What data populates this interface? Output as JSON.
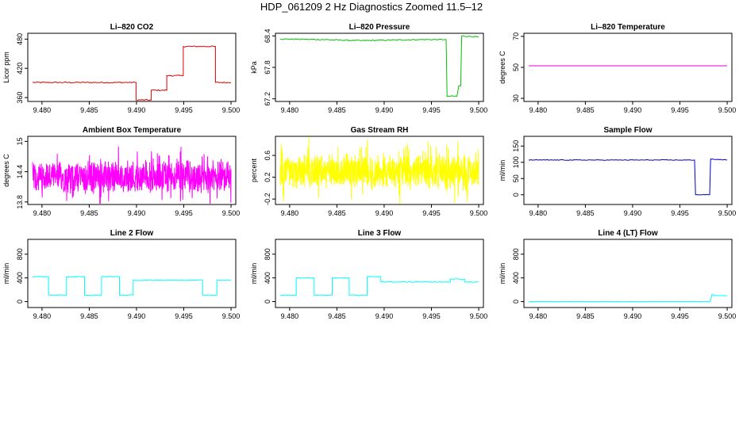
{
  "figure": {
    "title": "HDP_061209  2 Hz Diagnostics Zoomed 11.5–12"
  },
  "chart_data": [
    {
      "type": "line",
      "title": "Li–820 CO2",
      "xlabel": "",
      "ylabel": "Licor ppm",
      "color": "#e00000",
      "xlim": [
        9.4785,
        9.5005
      ],
      "ylim": [
        352,
        492
      ],
      "xticks": [
        "9.480",
        "9.485",
        "9.490",
        "9.495",
        "9.500"
      ],
      "yticks": [
        360,
        420,
        480
      ],
      "series": [
        {
          "noise": 1.2,
          "x": [
            9.479,
            9.48995,
            9.48995,
            9.49155,
            9.49155,
            9.4932,
            9.4932,
            9.49495,
            9.49495,
            9.49835,
            9.49835,
            9.5
          ],
          "y": [
            391,
            391,
            355,
            355,
            375,
            375,
            405,
            405,
            465,
            465,
            391,
            391
          ]
        }
      ]
    },
    {
      "type": "line",
      "title": "Li–820 Pressure",
      "xlabel": "",
      "ylabel": "kPa",
      "color": "#00c000",
      "xlim": [
        9.4785,
        9.5005
      ],
      "ylim": [
        67.15,
        68.45
      ],
      "xticks": [
        "9.480",
        "9.485",
        "9.490",
        "9.495",
        "9.500"
      ],
      "yticks": [
        67.2,
        67.8,
        68.4
      ],
      "series": [
        {
          "noise": 0.01,
          "x": [
            9.479,
            9.4835,
            9.4875,
            9.4935,
            9.49655,
            9.49665,
            9.4969,
            9.4977,
            9.4979,
            9.4981,
            9.4982,
            9.5
          ],
          "y": [
            68.34,
            68.33,
            68.31,
            68.33,
            68.33,
            67.25,
            67.25,
            67.25,
            67.45,
            67.45,
            68.4,
            68.38
          ]
        }
      ]
    },
    {
      "type": "line",
      "title": "Li–820 Temperature",
      "xlabel": "",
      "ylabel": "degrees C",
      "color": "#e000e0",
      "xlim": [
        9.4785,
        9.5005
      ],
      "ylim": [
        28,
        72
      ],
      "xticks": [
        "9.480",
        "9.485",
        "9.490",
        "9.495",
        "9.500"
      ],
      "yticks": [
        30,
        50,
        70
      ],
      "series": [
        {
          "noise": 0,
          "x": [
            9.479,
            9.5
          ],
          "y": [
            51,
            51
          ]
        }
      ]
    },
    {
      "type": "line",
      "title": "Ambient Box Temperature",
      "xlabel": "",
      "ylabel": "degrees C",
      "color": "#ff00ff",
      "xlim": [
        9.4785,
        9.5005
      ],
      "ylim": [
        13.75,
        15.1
      ],
      "xticks": [
        "9.480",
        "9.485",
        "9.490",
        "9.495",
        "9.500"
      ],
      "yticks": [
        13.8,
        14.4,
        15.0
      ],
      "series": [
        {
          "noise": 0.35,
          "x": [
            9.479,
            9.5
          ],
          "y": [
            14.3,
            14.3
          ]
        }
      ]
    },
    {
      "type": "line",
      "title": "Gas Stream RH",
      "xlabel": "",
      "ylabel": "percent",
      "color": "#ffff00",
      "xlim": [
        9.4785,
        9.5005
      ],
      "ylim": [
        -0.3,
        0.95
      ],
      "xticks": [
        "9.480",
        "9.485",
        "9.490",
        "9.495",
        "9.500"
      ],
      "yticks": [
        -0.2,
        0.2,
        0.6
      ],
      "series": [
        {
          "noise": 0.35,
          "x": [
            9.479,
            9.5
          ],
          "y": [
            0.3,
            0.3
          ]
        }
      ]
    },
    {
      "type": "line",
      "title": "Sample Flow",
      "xlabel": "",
      "ylabel": "ml/min",
      "color": "#0000cc",
      "xlim": [
        9.4785,
        9.5005
      ],
      "ylim": [
        -30,
        180
      ],
      "xticks": [
        "9.480",
        "9.485",
        "9.490",
        "9.495",
        "9.500"
      ],
      "yticks": [
        0,
        50,
        100,
        150
      ],
      "series": [
        {
          "noise": 1,
          "x": [
            9.479,
            9.49655,
            9.49665,
            9.49815,
            9.49825,
            9.5
          ],
          "y": [
            107,
            107,
            0,
            0,
            110,
            107
          ]
        }
      ]
    },
    {
      "type": "line",
      "title": "Line 2 Flow",
      "xlabel": "",
      "ylabel": "ml/min",
      "color": "#00ffff",
      "xlim": [
        9.4785,
        9.5005
      ],
      "ylim": [
        -100,
        1050
      ],
      "xticks": [
        "9.480",
        "9.485",
        "9.490",
        "9.495",
        "9.500"
      ],
      "yticks": [
        0,
        400,
        800
      ],
      "series": [
        {
          "noise": 6,
          "x": [
            9.479,
            9.4807,
            9.4807,
            9.4826,
            9.4826,
            9.4845,
            9.4845,
            9.4863,
            9.4863,
            9.4882,
            9.4882,
            9.48965,
            9.48965,
            9.497,
            9.497,
            9.4985,
            9.4985,
            9.5
          ],
          "y": [
            420,
            420,
            110,
            110,
            420,
            420,
            110,
            110,
            420,
            420,
            110,
            110,
            360,
            360,
            110,
            110,
            360,
            360
          ]
        }
      ]
    },
    {
      "type": "line",
      "title": "Line 3 Flow",
      "xlabel": "",
      "ylabel": "ml/min",
      "color": "#00ffff",
      "xlim": [
        9.4785,
        9.5005
      ],
      "ylim": [
        -100,
        1050
      ],
      "xticks": [
        "9.480",
        "9.485",
        "9.490",
        "9.495",
        "9.500"
      ],
      "yticks": [
        0,
        400,
        800
      ],
      "series": [
        {
          "noise": 6,
          "x": [
            9.479,
            9.4807,
            9.4807,
            9.4826,
            9.4826,
            9.4845,
            9.4845,
            9.4863,
            9.4863,
            9.4882,
            9.4882,
            9.48965,
            9.48965,
            9.497,
            9.497,
            9.4985,
            9.4985,
            9.5
          ],
          "y": [
            110,
            110,
            400,
            400,
            110,
            110,
            400,
            400,
            110,
            110,
            420,
            420,
            330,
            330,
            380,
            380,
            330,
            330
          ]
        }
      ]
    },
    {
      "type": "line",
      "title": "Line 4 (LT) Flow",
      "xlabel": "",
      "ylabel": "ml/min",
      "color": "#00ffff",
      "xlim": [
        9.4785,
        9.5005
      ],
      "ylim": [
        -100,
        1050
      ],
      "xticks": [
        "9.480",
        "9.485",
        "9.490",
        "9.495",
        "9.500"
      ],
      "yticks": [
        0,
        400,
        800
      ],
      "series": [
        {
          "noise": 3,
          "x": [
            9.479,
            9.4982,
            9.4984,
            9.4988,
            9.5
          ],
          "y": [
            0,
            0,
            120,
            100,
            100
          ]
        }
      ]
    }
  ]
}
